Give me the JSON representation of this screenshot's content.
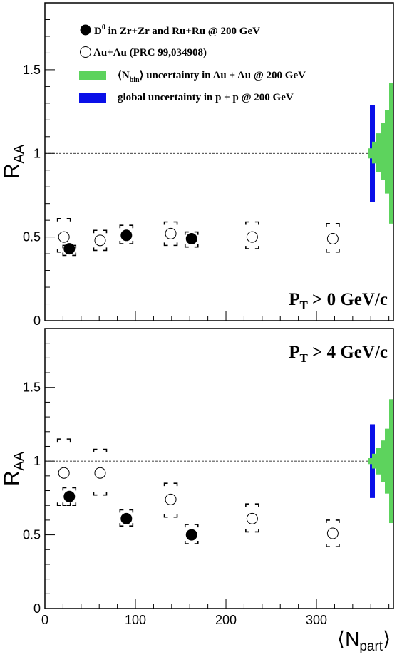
{
  "chart_data": [
    {
      "type": "scatter",
      "panel": "top",
      "annotation": {
        "main": "P",
        "sub": "T",
        "rest": " > 0 GeV/c"
      },
      "ylabel": {
        "main": "R",
        "sub": "AA"
      },
      "ylim": [
        0,
        1.9
      ],
      "xlim": [
        0,
        385
      ],
      "yticks": [
        "0",
        "0.5",
        "1",
        "1.5"
      ],
      "reference_line": 1,
      "legend": [
        {
          "name": "D",
          "sup": "0",
          "rest": " in Zr+Zr and Ru+Ru @ 200 GeV"
        },
        {
          "name": "Au+Au (PRC 99,034908)"
        },
        {
          "pre": "⟨N",
          "sub": "bin",
          "rest": "⟩ uncertainty in Au + Au @ 200 GeV"
        },
        {
          "name": "global uncertainty in p + p  @ 200 GeV"
        }
      ],
      "series": [
        {
          "name": "D0 in Zr+Zr and Ru+Ru @ 200 GeV",
          "marker": "filled-circle",
          "points": [
            {
              "x": 27,
              "y": 0.43,
              "sys_lo": 0.39,
              "sys_hi": 0.45
            },
            {
              "x": 90,
              "y": 0.51,
              "sys_lo": 0.46,
              "sys_hi": 0.57
            },
            {
              "x": 162,
              "y": 0.49,
              "sys_lo": 0.44,
              "sys_hi": 0.53
            }
          ]
        },
        {
          "name": "Au+Au (PRC 99,034908)",
          "marker": "open-circle",
          "points": [
            {
              "x": 21,
              "y": 0.5,
              "sys_lo": 0.41,
              "sys_hi": 0.61
            },
            {
              "x": 61,
              "y": 0.48,
              "sys_lo": 0.42,
              "sys_hi": 0.54
            },
            {
              "x": 139,
              "y": 0.52,
              "sys_lo": 0.45,
              "sys_hi": 0.59
            },
            {
              "x": 229,
              "y": 0.5,
              "sys_lo": 0.43,
              "sys_hi": 0.59
            },
            {
              "x": 318,
              "y": 0.49,
              "sys_lo": 0.41,
              "sys_hi": 0.58
            }
          ]
        }
      ],
      "uncertainty_bands": {
        "global_pp": {
          "color": "#0a10e8",
          "ylo": 0.71,
          "yhi": 1.29
        },
        "ncoll_auau": {
          "color": "#5dd35d",
          "steps": [
            [
              1.42,
              0.58
            ],
            [
              1.26,
              0.76
            ],
            [
              1.18,
              0.84
            ],
            [
              1.12,
              0.89
            ],
            [
              1.07,
              0.94
            ],
            [
              1.03,
              0.97
            ]
          ]
        }
      }
    },
    {
      "type": "scatter",
      "panel": "bottom",
      "annotation": {
        "main": "P",
        "sub": "T",
        "rest": " > 4 GeV/c"
      },
      "ylabel": {
        "main": "R",
        "sub": "AA"
      },
      "xlabel": {
        "pre": "⟨N",
        "sub": "part",
        "rest": "⟩"
      },
      "ylim": [
        0,
        1.9
      ],
      "xlim": [
        0,
        385
      ],
      "xticks": [
        "0",
        "100",
        "200",
        "300"
      ],
      "yticks": [
        "0",
        "0.5",
        "1",
        "1.5"
      ],
      "reference_line": 1,
      "series": [
        {
          "name": "D0 in Zr+Zr and Ru+Ru @ 200 GeV",
          "marker": "filled-circle",
          "points": [
            {
              "x": 27,
              "y": 0.76,
              "sys_lo": 0.7,
              "sys_hi": 0.82
            },
            {
              "x": 90,
              "y": 0.61,
              "sys_lo": 0.56,
              "sys_hi": 0.67
            },
            {
              "x": 162,
              "y": 0.5,
              "sys_lo": 0.44,
              "sys_hi": 0.57
            }
          ]
        },
        {
          "name": "Au+Au (PRC 99,034908)",
          "marker": "open-circle",
          "points": [
            {
              "x": 21,
              "y": 0.92,
              "sys_lo": 0.7,
              "sys_hi": 1.15
            },
            {
              "x": 61,
              "y": 0.92,
              "sys_lo": 0.77,
              "sys_hi": 1.08
            },
            {
              "x": 139,
              "y": 0.74,
              "sys_lo": 0.62,
              "sys_hi": 0.85
            },
            {
              "x": 229,
              "y": 0.61,
              "sys_lo": 0.52,
              "sys_hi": 0.71
            },
            {
              "x": 318,
              "y": 0.51,
              "sys_lo": 0.42,
              "sys_hi": 0.6
            }
          ]
        }
      ],
      "uncertainty_bands": {
        "global_pp": {
          "color": "#0a10e8",
          "ylo": 0.75,
          "yhi": 1.25
        },
        "ncoll_auau": {
          "color": "#5dd35d",
          "steps": [
            [
              1.42,
              0.58
            ],
            [
              1.22,
              0.78
            ],
            [
              1.14,
              0.86
            ],
            [
              1.09,
              0.91
            ],
            [
              1.05,
              0.95
            ],
            [
              1.02,
              0.98
            ]
          ]
        }
      }
    }
  ]
}
